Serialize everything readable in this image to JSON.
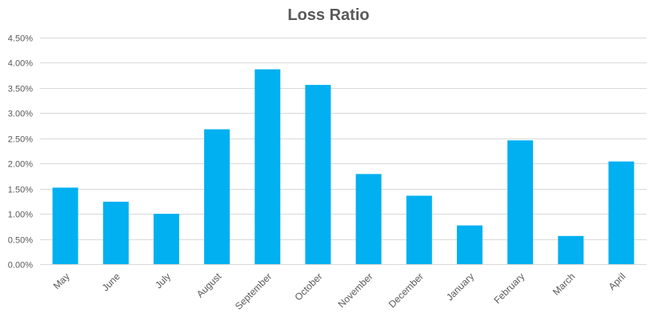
{
  "chart_data": {
    "type": "bar",
    "title": "Loss Ratio",
    "xlabel": "",
    "ylabel": "",
    "categories": [
      "May",
      "June",
      "July",
      "August",
      "September",
      "October",
      "November",
      "December",
      "January",
      "February",
      "March",
      "April"
    ],
    "values": [
      1.52,
      1.24,
      1.0,
      2.68,
      3.87,
      3.56,
      1.79,
      1.36,
      0.77,
      2.46,
      0.56,
      2.04
    ],
    "value_unit": "%",
    "ylim": [
      0,
      4.5
    ],
    "yticks": [
      "0.00%",
      "0.50%",
      "1.00%",
      "1.50%",
      "2.00%",
      "2.50%",
      "3.00%",
      "3.50%",
      "4.00%",
      "4.50%"
    ],
    "grid": true,
    "legend": "none",
    "bar_color": "#00b0f0"
  }
}
